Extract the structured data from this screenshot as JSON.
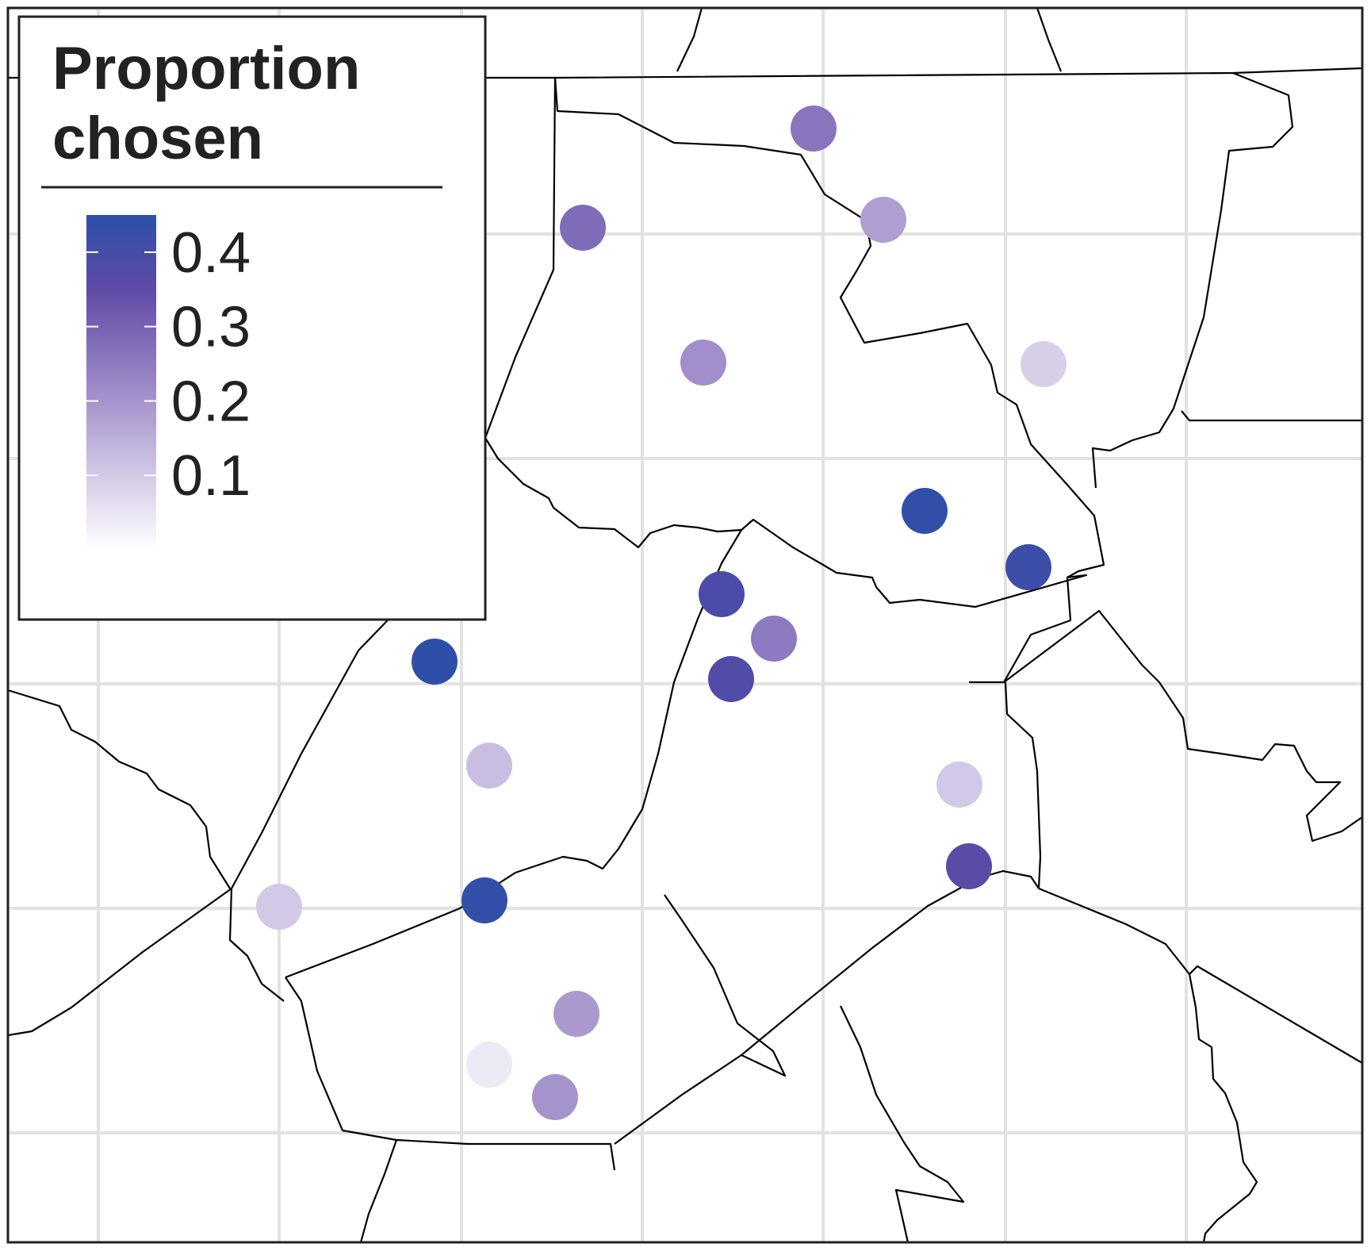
{
  "legend": {
    "title_line1": "Proportion",
    "title_line2": "chosen",
    "ticks": [
      "0.4",
      "0.3",
      "0.2",
      "0.1"
    ],
    "tick_values": [
      0.4,
      0.3,
      0.2,
      0.1
    ],
    "range": [
      0.0,
      0.45
    ],
    "color_low": "#ffffff",
    "color_mid": "#7b5fb0",
    "color_high": "#2d4fa8",
    "placement": "top-left"
  },
  "map": {
    "gridlines": true,
    "boundary_color": "#000000",
    "grid_color": "#e2e2e2",
    "points": [
      {
        "value": 0.26
      },
      {
        "value": 0.18
      },
      {
        "value": 0.28
      },
      {
        "value": 0.21
      },
      {
        "value": 0.09
      },
      {
        "value": 0.44
      },
      {
        "value": 0.42
      },
      {
        "value": 0.39
      },
      {
        "value": 0.25
      },
      {
        "value": 0.38
      },
      {
        "value": 0.45
      },
      {
        "value": 0.12
      },
      {
        "value": 0.1
      },
      {
        "value": 0.36
      },
      {
        "value": 0.1
      },
      {
        "value": 0.44
      },
      {
        "value": 0.19
      },
      {
        "value": 0.04
      },
      {
        "value": 0.2
      }
    ]
  }
}
